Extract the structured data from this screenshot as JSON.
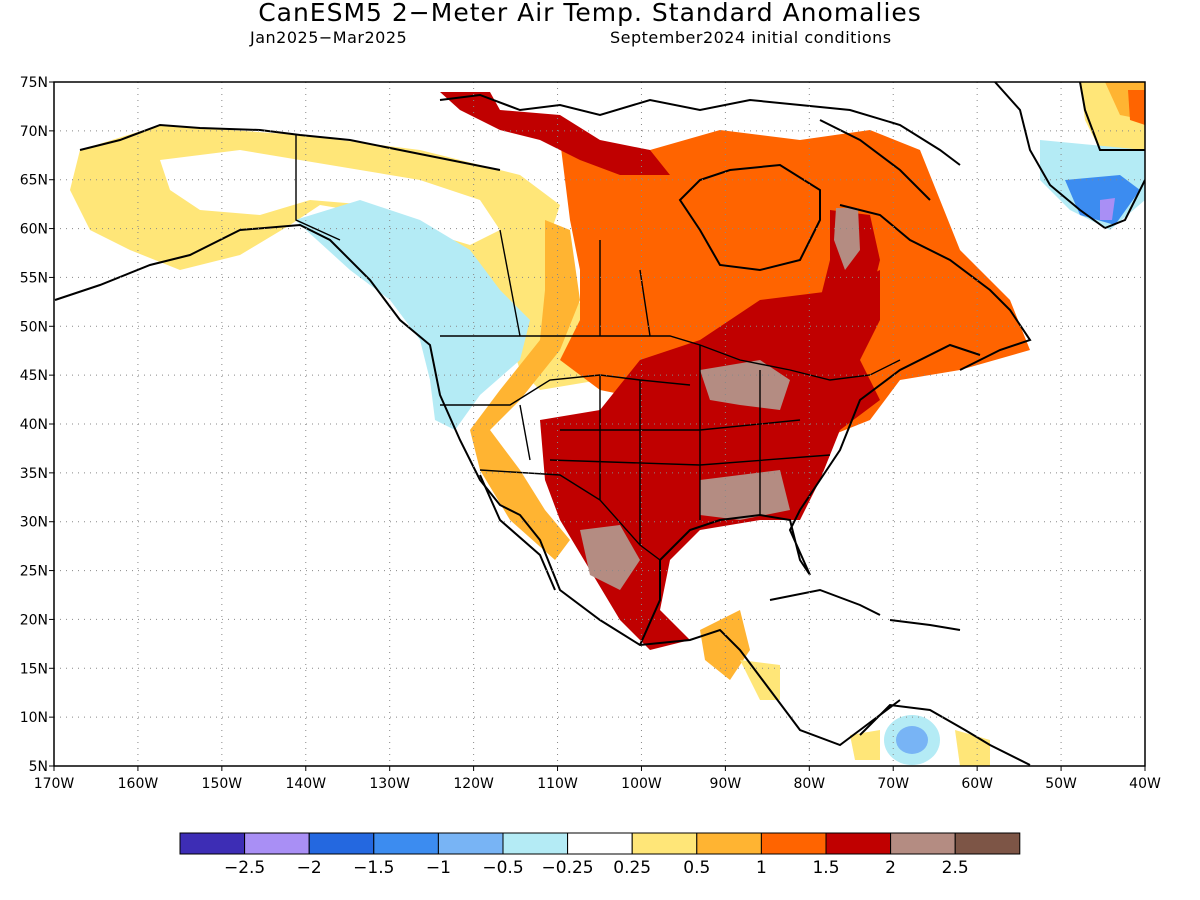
{
  "title": "CanESM5 2−Meter Air Temp. Standard Anomalies",
  "subtitle_left": "Jan2025−Mar2025",
  "subtitle_right": "September2024 initial conditions",
  "map": {
    "lon_range": [
      -170,
      -40
    ],
    "lat_range": [
      5,
      75
    ],
    "lon_ticks": [
      "170W",
      "160W",
      "150W",
      "140W",
      "130W",
      "120W",
      "110W",
      "100W",
      "90W",
      "80W",
      "70W",
      "60W",
      "50W",
      "40W"
    ],
    "lat_ticks": [
      "75N",
      "70N",
      "65N",
      "60N",
      "55N",
      "50N",
      "45N",
      "40N",
      "35N",
      "30N",
      "25N",
      "20N",
      "15N",
      "10N",
      "5N"
    ]
  },
  "colorbar": {
    "colors": [
      "#3d2db5",
      "#a98ff5",
      "#2468e0",
      "#3c8cf0",
      "#78b4f5",
      "#b4ebf5",
      "#ffffff",
      "#ffe678",
      "#ffb432",
      "#ff6400",
      "#c00000",
      "#b48c82",
      "#7d5546"
    ],
    "labels": [
      "−2.5",
      "−2",
      "−1.5",
      "−1",
      "−0.5",
      "−0.25",
      "0.25",
      "0.5",
      "1",
      "1.5",
      "2",
      "2.5"
    ]
  }
}
